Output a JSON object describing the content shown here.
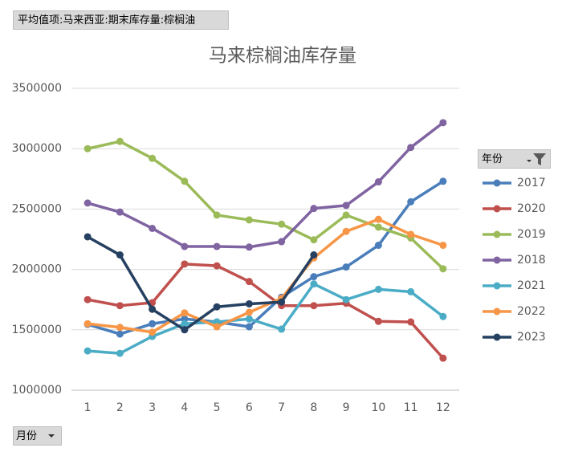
{
  "pivot": {
    "value_field": "平均值项:马来西亚:期末库存量:棕榈油",
    "legend_field": "年份",
    "axis_field": "月份"
  },
  "chart_data": {
    "type": "line",
    "title": "马来棕榈油库存量",
    "categories": [
      "1",
      "2",
      "3",
      "4",
      "5",
      "6",
      "7",
      "8",
      "9",
      "10",
      "11",
      "12"
    ],
    "series": [
      {
        "name": "2017",
        "color": "#4a7ebb",
        "values": [
          1545000,
          1465000,
          1550000,
          1590000,
          1565000,
          1525000,
          1770000,
          1940000,
          2020000,
          2200000,
          2560000,
          2730000
        ]
      },
      {
        "name": "2020",
        "color": "#c0504d",
        "values": [
          1750000,
          1700000,
          1725000,
          2045000,
          2030000,
          1900000,
          1700000,
          1700000,
          1720000,
          1570000,
          1565000,
          1265000
        ]
      },
      {
        "name": "2019",
        "color": "#9bbb59",
        "values": [
          3000000,
          3060000,
          2920000,
          2730000,
          2450000,
          2410000,
          2375000,
          2245000,
          2450000,
          2350000,
          2260000,
          2005000
        ]
      },
      {
        "name": "2018",
        "color": "#8064a2",
        "values": [
          2550000,
          2475000,
          2340000,
          2190000,
          2190000,
          2185000,
          2230000,
          2505000,
          2530000,
          2725000,
          3010000,
          3215000
        ]
      },
      {
        "name": "2021",
        "color": "#4bacc6",
        "values": [
          1325000,
          1305000,
          1445000,
          1550000,
          1565000,
          1590000,
          1505000,
          1880000,
          1750000,
          1835000,
          1815000,
          1610000
        ]
      },
      {
        "name": "2022",
        "color": "#f79646",
        "values": [
          1550000,
          1520000,
          1480000,
          1640000,
          1525000,
          1645000,
          1760000,
          2095000,
          2315000,
          2415000,
          2290000,
          2200000
        ]
      },
      {
        "name": "2023",
        "color": "#254061",
        "values": [
          2270000,
          2120000,
          1670000,
          1500000,
          1690000,
          1715000,
          1730000,
          2120000,
          null,
          null,
          null,
          null
        ]
      }
    ],
    "ylim": [
      1000000,
      3500000
    ],
    "yticks": [
      1000000,
      1500000,
      2000000,
      2500000,
      3000000,
      3500000
    ],
    "grid": true
  }
}
